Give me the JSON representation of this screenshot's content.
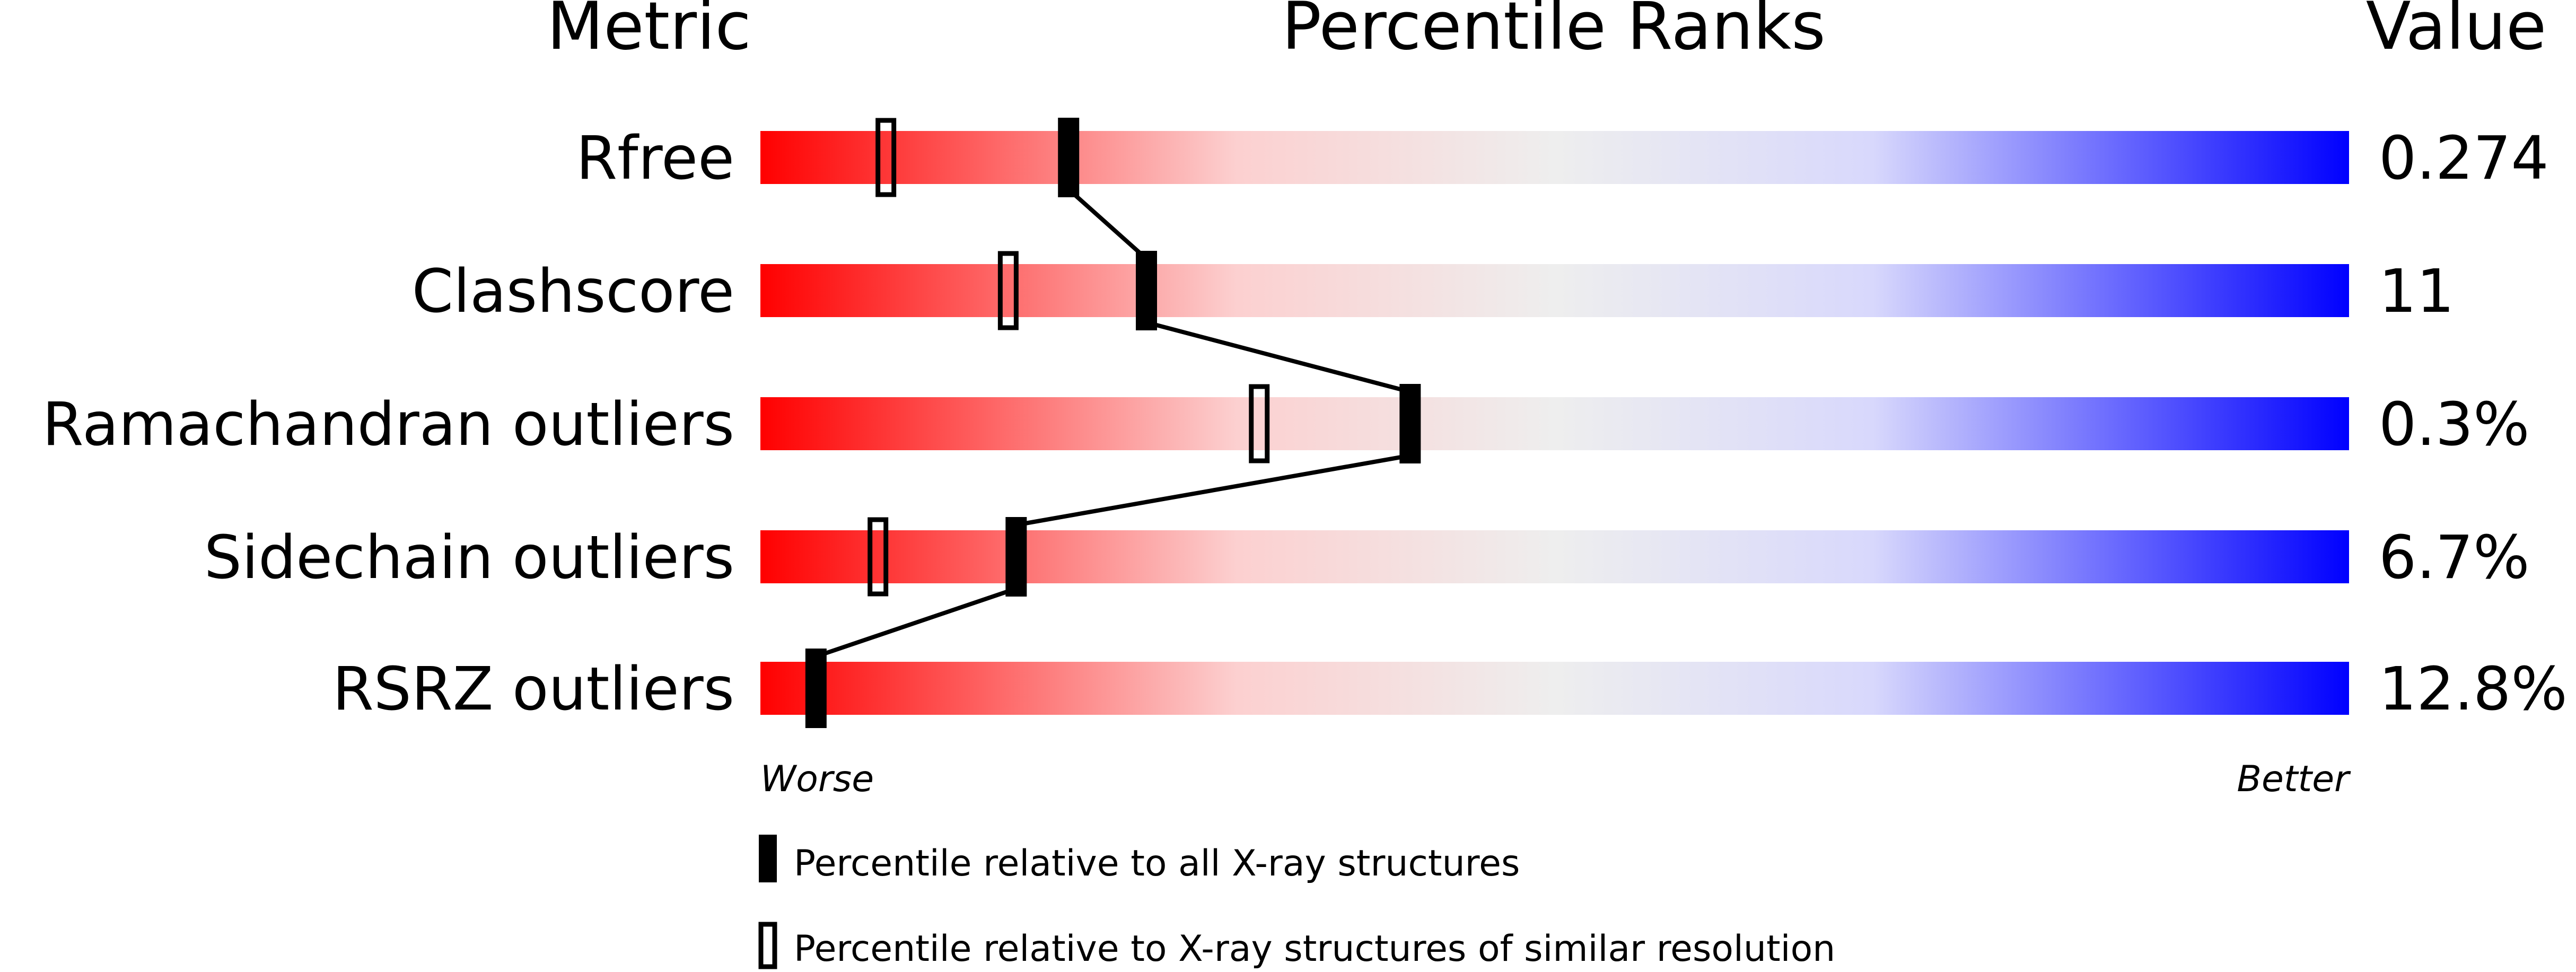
{
  "chart_data": {
    "type": "percentile-rank-slider",
    "headers": {
      "metric": "Metric",
      "ranks": "Percentile Ranks",
      "value": "Value"
    },
    "xlim": [
      0,
      100
    ],
    "axis_ends": {
      "left": "Worse",
      "right": "Better"
    },
    "gradient_colors": [
      "#ff0000",
      "#f0f0f0",
      "#0000ff"
    ],
    "rows": [
      {
        "metric": "Rfree",
        "value": "0.274",
        "percentile_all": 19.4,
        "percentile_similar": 7.9
      },
      {
        "metric": "Clashscore",
        "value": "11",
        "percentile_all": 24.3,
        "percentile_similar": 15.6
      },
      {
        "metric": "Ramachandran outliers",
        "value": "0.3%",
        "percentile_all": 40.9,
        "percentile_similar": 31.4
      },
      {
        "metric": "Sidechain outliers",
        "value": "6.7%",
        "percentile_all": 16.1,
        "percentile_similar": 7.4
      },
      {
        "metric": "RSRZ outliers",
        "value": "12.8%",
        "percentile_all": 3.5,
        "percentile_similar": 3.5
      }
    ],
    "legend": [
      {
        "marker": "filled",
        "label": "Percentile relative to all X-ray structures"
      },
      {
        "marker": "hollow",
        "label": "Percentile relative to X-ray structures of similar resolution"
      }
    ]
  }
}
